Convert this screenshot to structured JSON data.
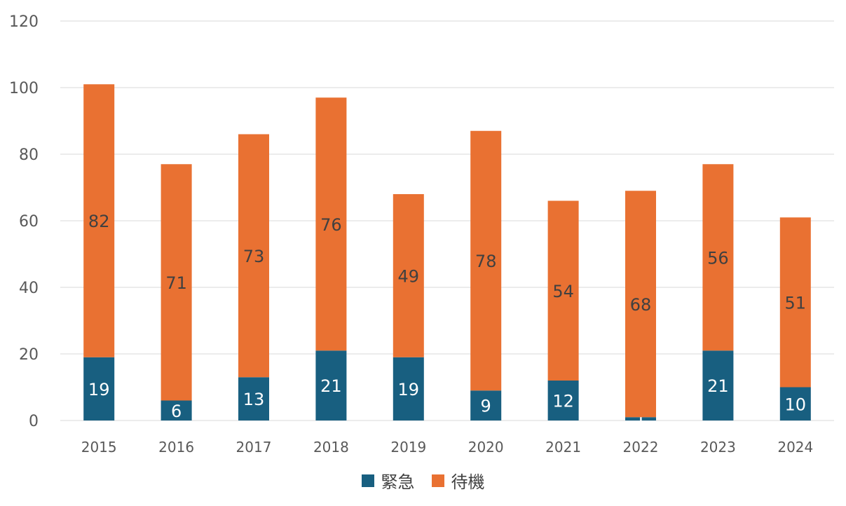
{
  "chart_data": {
    "type": "bar",
    "stacked": true,
    "categories": [
      "2015",
      "2016",
      "2017",
      "2018",
      "2019",
      "2020",
      "2021",
      "2022",
      "2023",
      "2024"
    ],
    "series": [
      {
        "name": "緊急",
        "values": [
          19,
          6,
          13,
          21,
          19,
          9,
          12,
          1,
          21,
          10
        ],
        "color": "#185f80",
        "label_color": "#ffffff"
      },
      {
        "name": "待機",
        "values": [
          82,
          71,
          73,
          76,
          49,
          78,
          54,
          68,
          56,
          51
        ],
        "color": "#e97132",
        "label_color": "#404040"
      }
    ],
    "ylim": [
      0,
      120
    ],
    "yticks": [
      0,
      20,
      40,
      60,
      80,
      100,
      120
    ],
    "grid": true,
    "legend_position": "bottom",
    "data_labels": true
  }
}
